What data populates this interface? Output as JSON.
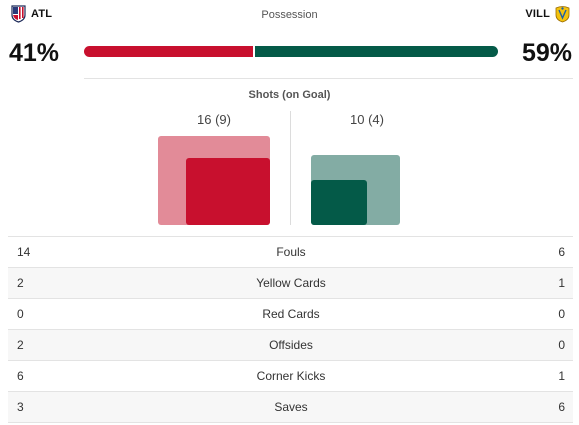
{
  "home": {
    "abbr": "ATL",
    "possession": "41%",
    "possession_value": 41,
    "shots_label": "16 (9)",
    "shots": 16,
    "on_goal": 9,
    "color": "#c8102e",
    "light_color": "#e28b98"
  },
  "away": {
    "abbr": "VILL",
    "possession": "59%",
    "possession_value": 59,
    "shots_label": "10 (4)",
    "shots": 10,
    "on_goal": 4,
    "color": "#045a48",
    "light_color": "#83aca4"
  },
  "possession_title": "Possession",
  "shots_title": "Shots (on Goal)",
  "stats": [
    {
      "home": "14",
      "name": "Fouls",
      "away": "6"
    },
    {
      "home": "2",
      "name": "Yellow Cards",
      "away": "1"
    },
    {
      "home": "0",
      "name": "Red Cards",
      "away": "0"
    },
    {
      "home": "2",
      "name": "Offsides",
      "away": "0"
    },
    {
      "home": "6",
      "name": "Corner Kicks",
      "away": "1"
    },
    {
      "home": "3",
      "name": "Saves",
      "away": "6"
    }
  ]
}
